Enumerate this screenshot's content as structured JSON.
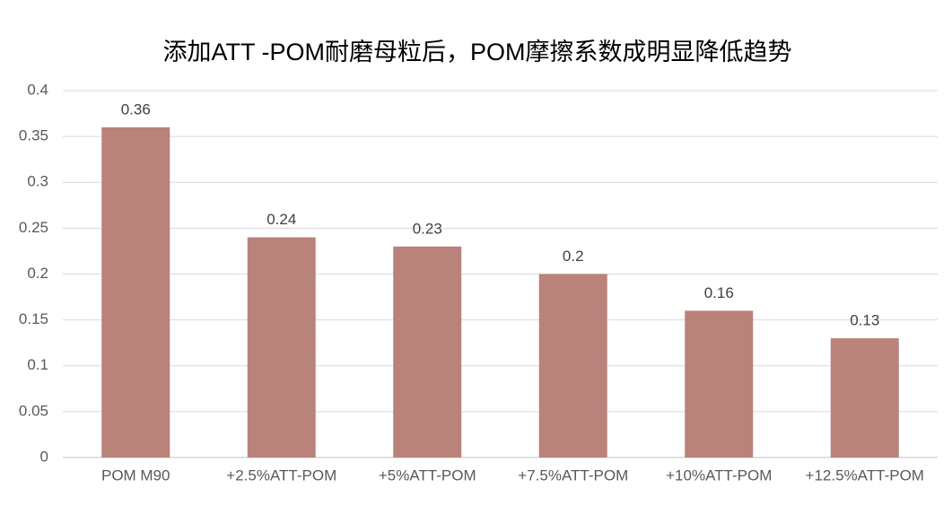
{
  "chart_data": {
    "type": "bar",
    "title": "添加ATT -POM耐磨母粒后，POM摩擦系数成明显降低趋势",
    "categories": [
      "POM M90",
      "+2.5%ATT-POM",
      "+5%ATT-POM",
      "+7.5%ATT-POM",
      "+10%ATT-POM",
      "+12.5%ATT-POM"
    ],
    "values": [
      0.36,
      0.24,
      0.23,
      0.2,
      0.16,
      0.13
    ],
    "color": "#b9827a",
    "ylim": [
      0,
      0.4
    ],
    "yticks": [
      0,
      0.05,
      0.1,
      0.15,
      0.2,
      0.25,
      0.3,
      0.35,
      0.4
    ],
    "grid": true
  }
}
